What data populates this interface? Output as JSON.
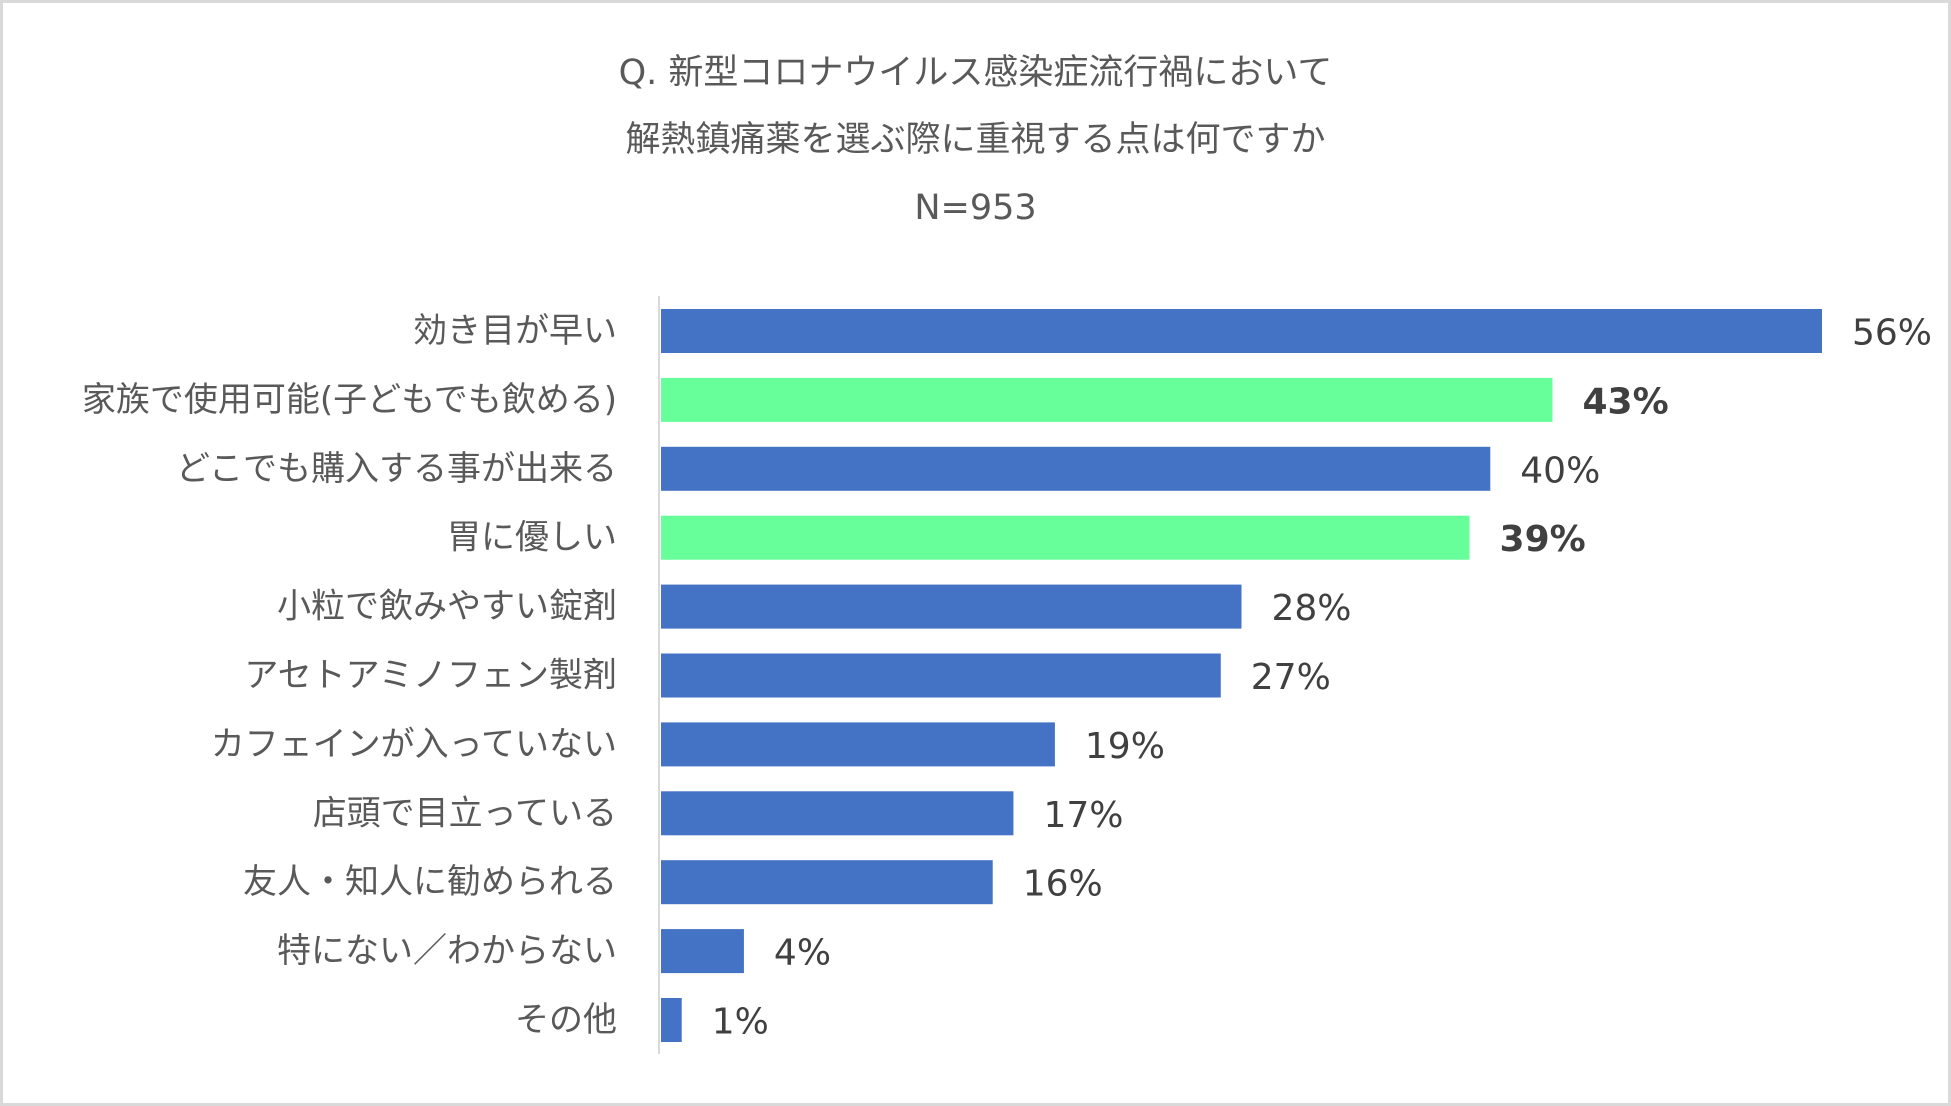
{
  "chart_data": {
    "type": "bar",
    "orientation": "horizontal",
    "title": [
      "Q. 新型コロナウイルス感染症流行禍において",
      "解熱鎮痛薬を選ぶ際に重視する点は何ですか",
      "N=953"
    ],
    "categories": [
      "効き目が早い",
      "家族で使用可能(子どもでも飲める)",
      "どこでも購入する事が出来る",
      "胃に優しい",
      "小粒で飲みやすい錠剤",
      "アセトアミノフェン製剤",
      "カフェインが入っていない",
      "店頭で目立っている",
      "友人・知人に勧められる",
      "特にない／わからない",
      "その他"
    ],
    "values": [
      56,
      43,
      40,
      39,
      28,
      27,
      19,
      17,
      16,
      4,
      1
    ],
    "value_labels": [
      "56%",
      "43%",
      "40%",
      "39%",
      "28%",
      "27%",
      "19%",
      "17%",
      "16%",
      "4%",
      "1%"
    ],
    "highlight": [
      false,
      true,
      false,
      true,
      false,
      false,
      false,
      false,
      false,
      false,
      false
    ],
    "highlight_label_colors": {
      "1": "#404040",
      "3": "#000000"
    },
    "unit": "%",
    "xlim": [
      0,
      56
    ],
    "grid": false,
    "legend": "none",
    "colors": {
      "default": "#4472C4",
      "highlight": "#66FF99",
      "label": "#595959",
      "value": "#404040",
      "axis": "#d9d9d9"
    }
  }
}
